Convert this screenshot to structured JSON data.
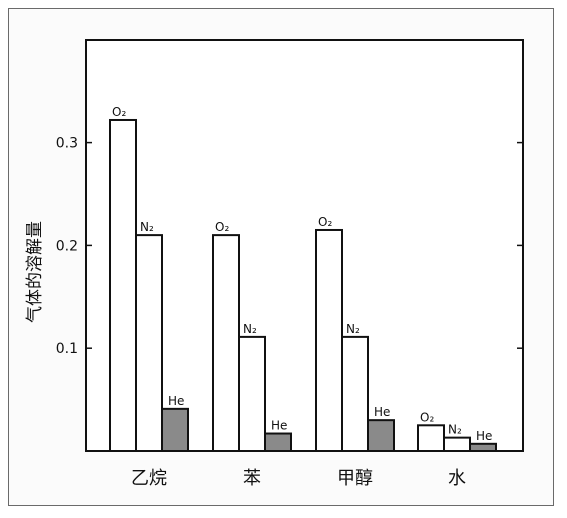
{
  "chart_data": {
    "type": "bar",
    "title": "",
    "xlabel": "",
    "ylabel": "气体的溶解量",
    "categories": [
      "乙烷",
      "苯",
      "甲醇",
      "水"
    ],
    "ylim": [
      0,
      0.36
    ],
    "yticks": [
      0.1,
      0.2,
      0.3
    ],
    "ytick_labels": [
      "0.1",
      "0.2",
      "0.3"
    ],
    "grid": false,
    "legend": "none",
    "bars": [
      [
        {
          "label": "O₂",
          "value": 0.322,
          "color": "#ffffff"
        },
        {
          "label": "N₂",
          "value": 0.21,
          "color": "#ffffff"
        },
        {
          "label": "He",
          "value": 0.041,
          "color": "#8a8a8a"
        }
      ],
      [
        {
          "label": "O₂",
          "value": 0.21,
          "color": "#ffffff"
        },
        {
          "label": "N₂",
          "value": 0.111,
          "color": "#ffffff"
        },
        {
          "label": "He",
          "value": 0.017,
          "color": "#8a8a8a"
        }
      ],
      [
        {
          "label": "O₂",
          "value": 0.215,
          "color": "#ffffff"
        },
        {
          "label": "N₂",
          "value": 0.111,
          "color": "#ffffff"
        },
        {
          "label": "He",
          "value": 0.03,
          "color": "#8a8a8a"
        }
      ],
      [
        {
          "label": "O₂",
          "value": 0.025,
          "color": "#ffffff"
        },
        {
          "label": "N₂",
          "value": 0.013,
          "color": "#ffffff"
        },
        {
          "label": "He",
          "value": 0.007,
          "color": "#8a8a8a"
        }
      ]
    ]
  }
}
